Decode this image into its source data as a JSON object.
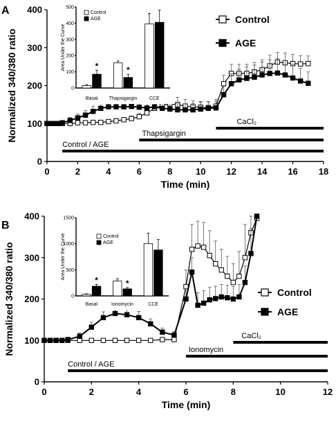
{
  "chart_data": [
    {
      "type": "line",
      "panel_label": "A",
      "xlabel": "Time (min)",
      "ylabel": "Normalized 340/380 ratio",
      "xlim": [
        0,
        18
      ],
      "ylim": [
        0,
        400
      ],
      "x_ticks": [
        0,
        2,
        4,
        6,
        8,
        10,
        12,
        14,
        16,
        18
      ],
      "y_ticks": [
        0,
        100,
        200,
        300,
        400
      ],
      "legend_position": "top-right",
      "series": [
        {
          "name": "Control",
          "marker": "open-square",
          "x": [
            0,
            0.25,
            0.5,
            0.75,
            1,
            1.5,
            2,
            2.5,
            3,
            3.5,
            4,
            4.5,
            5,
            5.5,
            6,
            6.5,
            7,
            7.5,
            8,
            8.5,
            9,
            9.5,
            10,
            10.5,
            11,
            11.5,
            12,
            12.5,
            13,
            13.5,
            14,
            14.5,
            15,
            15.5,
            16,
            16.5,
            17
          ],
          "values": [
            100,
            100,
            100,
            100,
            100,
            100,
            102,
            102,
            103,
            103,
            105,
            107,
            110,
            113,
            118,
            128,
            140,
            148,
            152,
            150,
            146,
            144,
            143,
            142,
            146,
            205,
            232,
            232,
            232,
            236,
            242,
            252,
            262,
            260,
            258,
            257,
            258
          ],
          "errors": [
            4,
            4,
            4,
            4,
            4,
            4,
            4,
            4,
            4,
            4,
            5,
            6,
            6,
            7,
            8,
            14,
            18,
            20,
            20,
            19,
            18,
            16,
            15,
            15,
            18,
            22,
            24,
            24,
            24,
            25,
            26,
            28,
            26,
            26,
            24,
            22,
            20
          ]
        },
        {
          "name": "AGE",
          "marker": "filled-square",
          "x": [
            0,
            0.25,
            0.5,
            0.75,
            1,
            1.5,
            2,
            2.5,
            3,
            3.5,
            4,
            4.5,
            5,
            5.5,
            6,
            6.5,
            7,
            7.5,
            8,
            8.5,
            9,
            9.5,
            10,
            10.5,
            11,
            11.5,
            12,
            12.5,
            13,
            13.5,
            14,
            14.5,
            15,
            15.5,
            16,
            16.5,
            17
          ],
          "values": [
            100,
            100,
            100,
            100,
            102,
            108,
            115,
            122,
            132,
            140,
            144,
            144,
            144,
            145,
            143,
            141,
            144,
            140,
            138,
            136,
            136,
            136,
            138,
            140,
            141,
            176,
            205,
            215,
            219,
            222,
            228,
            232,
            233,
            228,
            220,
            212,
            206
          ],
          "errors": [
            4,
            4,
            4,
            4,
            4,
            8,
            10,
            12,
            14,
            15,
            15,
            16,
            16,
            16,
            16,
            16,
            16,
            16,
            16,
            16,
            16,
            17,
            18,
            18,
            18,
            22,
            26,
            28,
            30,
            32,
            34,
            36,
            38,
            38,
            36,
            34,
            30
          ]
        }
      ],
      "inset": {
        "type": "bar",
        "ylabel": "Area Under the Curve",
        "ylim": [
          0,
          500
        ],
        "y_ticks": [
          0,
          100,
          200,
          300,
          400,
          500
        ],
        "categories": [
          "Basal",
          "Thapsigargin",
          "CCE"
        ],
        "series": [
          {
            "name": "Control",
            "values": [
              15,
              155,
              395
            ],
            "errors": [
              5,
              12,
              65
            ]
          },
          {
            "name": "AGE",
            "values": [
              85,
              65,
              405
            ],
            "errors": [
              25,
              20,
              75
            ]
          }
        ],
        "annotations": [
          "*",
          "*"
        ]
      },
      "treatment_bars": [
        {
          "label": "CaCl₂",
          "start": 11,
          "end": 18
        },
        {
          "label": "Thapsigargin",
          "start": 6,
          "end": 18
        },
        {
          "label": "Control / AGE",
          "start": 1,
          "end": 18
        }
      ]
    },
    {
      "type": "line",
      "panel_label": "B",
      "xlabel": "Time (min)",
      "ylabel": "Normalized 340/380 ratio",
      "xlim": [
        0,
        12
      ],
      "ylim": [
        0,
        400
      ],
      "x_ticks": [
        0,
        2,
        4,
        6,
        8,
        10,
        12
      ],
      "y_ticks": [
        0,
        100,
        200,
        300,
        400
      ],
      "legend_position": "middle-right",
      "series": [
        {
          "name": "Control",
          "marker": "open-square",
          "x": [
            0,
            0.25,
            0.5,
            0.75,
            1,
            1.5,
            2,
            2.5,
            3,
            3.5,
            4,
            4.5,
            5,
            5.5,
            6,
            6.25,
            6.5,
            6.75,
            7,
            7.25,
            7.5,
            7.75,
            8,
            8.25,
            8.5,
            8.75,
            9
          ],
          "values": [
            100,
            100,
            100,
            100,
            100,
            100,
            100,
            100,
            100,
            100,
            100,
            100,
            102,
            102,
            230,
            320,
            328,
            325,
            305,
            285,
            270,
            255,
            240,
            255,
            300,
            360,
            395
          ],
          "errors": [
            4,
            4,
            4,
            4,
            4,
            4,
            4,
            4,
            4,
            4,
            4,
            4,
            4,
            4,
            40,
            60,
            60,
            60,
            60,
            55,
            50,
            48,
            45,
            60,
            80,
            100,
            120
          ]
        },
        {
          "name": "AGE",
          "marker": "filled-square",
          "x": [
            0,
            0.25,
            0.5,
            0.75,
            1,
            1.5,
            2,
            2.5,
            3,
            3.5,
            4,
            4.5,
            5,
            5.5,
            6,
            6.25,
            6.5,
            6.75,
            7,
            7.25,
            7.5,
            7.75,
            8,
            8.25,
            8.5,
            8.75,
            9
          ],
          "values": [
            100,
            100,
            100,
            100,
            102,
            110,
            132,
            155,
            165,
            162,
            155,
            140,
            120,
            113,
            200,
            265,
            185,
            190,
            198,
            201,
            205,
            203,
            200,
            205,
            240,
            310,
            400
          ],
          "errors": [
            4,
            4,
            4,
            4,
            4,
            8,
            12,
            14,
            15,
            15,
            15,
            12,
            10,
            8,
            25,
            35,
            30,
            30,
            30,
            30,
            30,
            30,
            30,
            30,
            40,
            60,
            80
          ]
        }
      ],
      "inset": {
        "type": "bar",
        "ylabel": "Area Under the Curve",
        "ylim": [
          0,
          1500
        ],
        "y_ticks": [
          0,
          500,
          1000,
          1500
        ],
        "categories": [
          "Basal",
          "Ionomycin",
          "CCE"
        ],
        "series": [
          {
            "name": "Control",
            "values": [
              30,
              285,
              1000
            ],
            "errors": [
              10,
              45,
              200
            ]
          },
          {
            "name": "AGE",
            "values": [
              185,
              135,
              880
            ],
            "errors": [
              35,
              25,
              200
            ]
          }
        ],
        "annotations": [
          "*",
          "*"
        ]
      },
      "treatment_bars": [
        {
          "label": "CaCl₂",
          "start": 8,
          "end": 12
        },
        {
          "label": "Ionomycin",
          "start": 6,
          "end": 12
        },
        {
          "label": "Control / AGE",
          "start": 1,
          "end": 12
        }
      ]
    }
  ]
}
